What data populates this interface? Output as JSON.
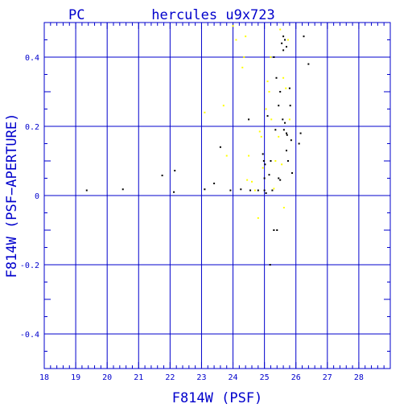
{
  "chart_data": {
    "type": "scatter",
    "title": "hercules_u9x723",
    "subtitle": "PC",
    "xlabel": "F814W (PSF)",
    "ylabel": "F814W (PSF−APERTURE)",
    "xlim": [
      18,
      29
    ],
    "ylim": [
      -0.5,
      0.5
    ],
    "x_ticks": [
      "18",
      "19",
      "20",
      "21",
      "22",
      "23",
      "24",
      "25",
      "26",
      "27",
      "28"
    ],
    "y_ticks": [
      "-0.4",
      "-0.2",
      "0",
      "0.2",
      "0.4"
    ],
    "grid": true,
    "colors": {
      "axis": "#0000cc",
      "grid": "#0000cc",
      "black_points": "#000000",
      "yellow_points": "#ffff00"
    },
    "series": [
      {
        "color": "black",
        "points": [
          [
            19.35,
            0.015
          ],
          [
            20.5,
            0.018
          ],
          [
            21.75,
            0.058
          ],
          [
            22.15,
            0.072
          ],
          [
            22.12,
            0.01
          ],
          [
            23.1,
            0.018
          ],
          [
            23.4,
            0.035
          ],
          [
            23.6,
            0.14
          ],
          [
            23.92,
            0.015
          ],
          [
            24.25,
            0.018
          ],
          [
            24.5,
            0.22
          ],
          [
            24.55,
            0.015
          ],
          [
            24.8,
            0.015
          ],
          [
            24.95,
            0.12
          ],
          [
            24.98,
            0.1
          ],
          [
            25.02,
            0.09
          ],
          [
            25.0,
            0.05
          ],
          [
            25.0,
            0.015
          ],
          [
            25.05,
            0.007
          ],
          [
            25.1,
            0.23
          ],
          [
            25.2,
            0.1
          ],
          [
            25.25,
            0.015
          ],
          [
            25.3,
            0.4
          ],
          [
            25.35,
            0.19
          ],
          [
            25.38,
            0.34
          ],
          [
            25.3,
            -0.1
          ],
          [
            25.4,
            -0.1
          ],
          [
            25.18,
            -0.2
          ],
          [
            25.45,
            0.26
          ],
          [
            25.5,
            0.3
          ],
          [
            25.55,
            0.44
          ],
          [
            25.6,
            0.42
          ],
          [
            25.6,
            0.46
          ],
          [
            25.65,
            0.45
          ],
          [
            25.7,
            0.43
          ],
          [
            25.58,
            0.22
          ],
          [
            25.62,
            0.19
          ],
          [
            25.65,
            0.21
          ],
          [
            25.7,
            0.18
          ],
          [
            25.72,
            0.175
          ],
          [
            25.7,
            0.13
          ],
          [
            25.75,
            0.1
          ],
          [
            25.8,
            0.31
          ],
          [
            25.82,
            0.26
          ],
          [
            25.85,
            0.16
          ],
          [
            25.88,
            0.065
          ],
          [
            26.1,
            0.15
          ],
          [
            26.15,
            0.18
          ],
          [
            26.25,
            0.46
          ],
          [
            26.4,
            0.38
          ],
          [
            25.45,
            0.05
          ],
          [
            25.5,
            0.045
          ],
          [
            25.15,
            0.06
          ]
        ]
      },
      {
        "color": "yellow",
        "points": [
          [
            23.1,
            0.24
          ],
          [
            23.7,
            0.26
          ],
          [
            23.8,
            0.115
          ],
          [
            24.0,
            0.49
          ],
          [
            24.1,
            0.45
          ],
          [
            24.3,
            0.37
          ],
          [
            24.35,
            0.4
          ],
          [
            24.4,
            0.46
          ],
          [
            24.45,
            0.045
          ],
          [
            24.5,
            0.115
          ],
          [
            24.6,
            0.04
          ],
          [
            24.7,
            0.015
          ],
          [
            24.8,
            -0.065
          ],
          [
            24.85,
            0.185
          ],
          [
            24.9,
            0.17
          ],
          [
            24.95,
            0.08
          ],
          [
            25.05,
            0.25
          ],
          [
            25.1,
            0.33
          ],
          [
            25.15,
            0.3
          ],
          [
            25.2,
            0.4
          ],
          [
            25.22,
            0.22
          ],
          [
            25.3,
            0.02
          ],
          [
            25.35,
            0.1
          ],
          [
            25.45,
            0.17
          ],
          [
            25.5,
            0.48
          ],
          [
            25.55,
            0.09
          ],
          [
            25.6,
            0.34
          ],
          [
            25.62,
            -0.035
          ],
          [
            25.68,
            0.31
          ],
          [
            25.75,
            0.45
          ],
          [
            25.8,
            0.22
          ]
        ]
      }
    ]
  }
}
